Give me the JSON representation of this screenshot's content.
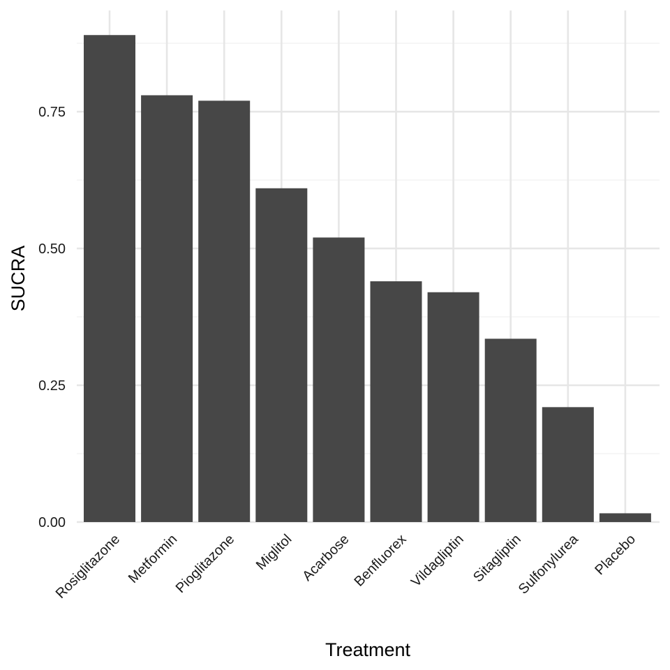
{
  "chart_data": {
    "type": "bar",
    "title": "",
    "xlabel": "Treatment",
    "ylabel": "SUCRA",
    "categories": [
      "Rosiglitazone",
      "Metformin",
      "Pioglitazone",
      "Miglitol",
      "Acarbose",
      "Benfluorex",
      "Vildagliptin",
      "Sitagliptin",
      "Sulfonylurea",
      "Placebo"
    ],
    "values": [
      0.89,
      0.78,
      0.77,
      0.61,
      0.52,
      0.44,
      0.42,
      0.335,
      0.21,
      0.016
    ],
    "ylim": [
      0,
      0.9
    ],
    "yticks": [
      0,
      0.25,
      0.5,
      0.75
    ],
    "ytick_labels": [
      "0.00",
      "0.25",
      "0.50",
      "0.75"
    ],
    "grid": true,
    "colors": {
      "bar": "#474747",
      "grid_major": "#e6e6e6",
      "grid_minor": "#f0f0f0"
    }
  }
}
